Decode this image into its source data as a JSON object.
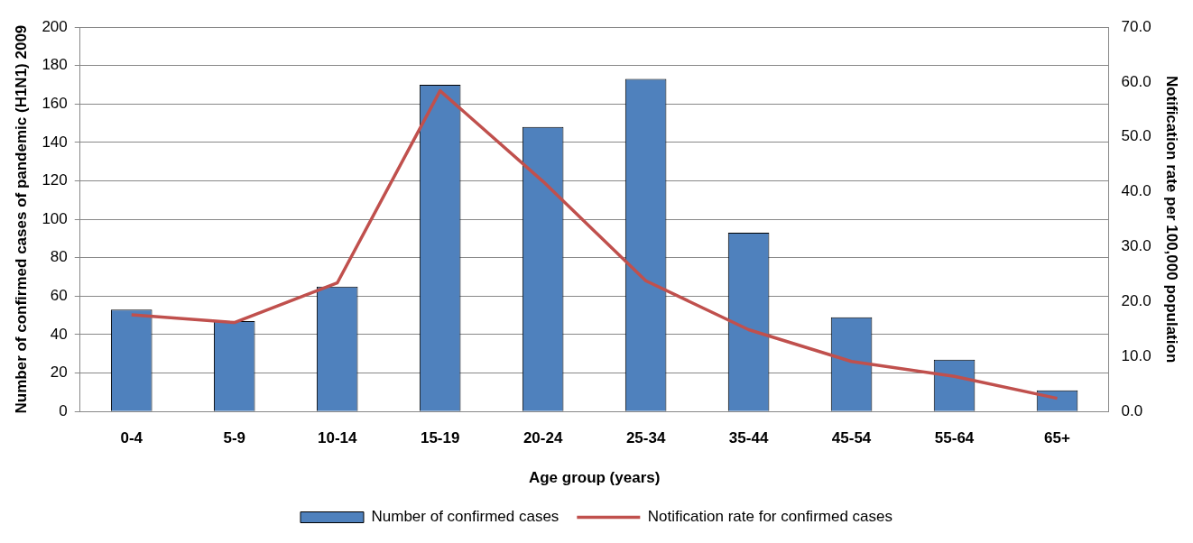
{
  "chart_data": {
    "type": "bar",
    "xlabel": "Age group (years)",
    "ylabel": "Number of confirmed cases of pandemic (H1N1) 2009",
    "y2label": "Notification rate per 100,000 population",
    "categories": [
      "0-4",
      "5-9",
      "10-14",
      "15-19",
      "20-24",
      "25-34",
      "35-44",
      "45-54",
      "55-64",
      "65+"
    ],
    "series": [
      {
        "name": "Number of confirmed cases",
        "color": "#4f81bd",
        "values": [
          53,
          47,
          65,
          170,
          148,
          173,
          93,
          49,
          27,
          11
        ]
      },
      {
        "name": "Notification rate for confirmed cases",
        "type": "line",
        "axis": "y2",
        "color": "#c0504d",
        "values": [
          17.6,
          16.2,
          23.4,
          58.4,
          41.9,
          23.8,
          14.9,
          9.1,
          6.4,
          2.4
        ]
      }
    ],
    "ylim": [
      0,
      200
    ],
    "yticks": [
      0,
      20,
      40,
      60,
      80,
      100,
      120,
      140,
      160,
      180,
      200
    ],
    "y2lim": [
      0,
      70
    ],
    "y2ticks": [
      {
        "value": 0,
        "label": "0.0"
      },
      {
        "value": 10,
        "label": "10.0"
      },
      {
        "value": 20,
        "label": "20.0"
      },
      {
        "value": 30,
        "label": "30.0"
      },
      {
        "value": 40,
        "label": "40.0"
      },
      {
        "value": 50,
        "label": "50.0"
      },
      {
        "value": 60,
        "label": "60.0"
      },
      {
        "value": 70,
        "label": "70.0"
      }
    ],
    "grid": "y",
    "legend": "bottom",
    "marker": "none",
    "line_style": "solid"
  }
}
